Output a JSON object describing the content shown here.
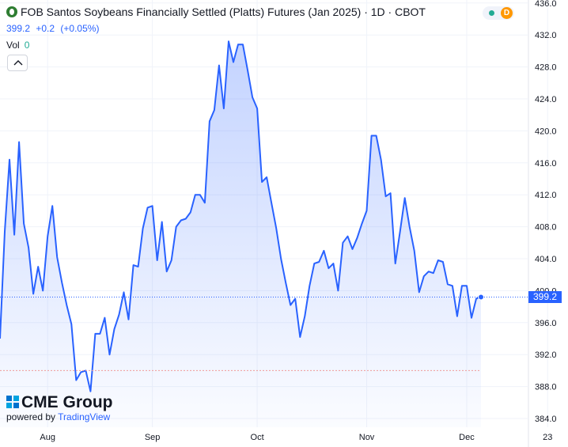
{
  "header": {
    "title": "FOB Santos Soybeans Financially Settled (Platts) Futures (Jan 2025) · 1D · CBOT",
    "last": "399.2",
    "change": "+0.2",
    "change_pct": "(+0.05%)",
    "vol_label": "Vol",
    "vol_value": "0",
    "market_badge": "D"
  },
  "price_label": "399.2",
  "branding": {
    "logo_text": "CME Group",
    "powered_by": "powered by",
    "tradingview": "TradingView"
  },
  "colors": {
    "line": "#2962ff",
    "fill": "#2962ff",
    "grid": "#f0f3fa",
    "reference_line": "#b2b5be"
  },
  "chart_data": {
    "type": "area",
    "title": "FOB Santos Soybeans Financially Settled (Platts) Futures (Jan 2025)",
    "xlabel": "",
    "ylabel": "",
    "ylim": [
      384,
      436
    ],
    "y_ticks": [
      "384.0",
      "388.0",
      "392.0",
      "396.0",
      "400.0",
      "404.0",
      "408.0",
      "412.0",
      "416.0",
      "420.0",
      "424.0",
      "428.0",
      "432.0",
      "436.0"
    ],
    "x_ticks": [
      "Aug",
      "Sep",
      "Oct",
      "Nov",
      "Dec",
      "23"
    ],
    "x_tick_index": [
      10,
      32,
      54,
      77,
      98,
      115
    ],
    "last_price": 399.2,
    "reference_price": 390.0,
    "grid": true,
    "values": [
      394.0,
      407.4,
      416.4,
      407.0,
      418.6,
      408.4,
      405.4,
      399.6,
      403.0,
      400.0,
      406.8,
      410.6,
      404.2,
      401.0,
      398.2,
      395.8,
      388.8,
      389.8,
      390.0,
      387.4,
      394.6,
      394.6,
      396.6,
      392.0,
      395.2,
      397.0,
      399.8,
      396.4,
      403.2,
      403.0,
      407.8,
      410.4,
      410.6,
      403.8,
      408.6,
      402.4,
      403.8,
      408.0,
      408.8,
      409.0,
      409.8,
      412.0,
      412.0,
      411.0,
      421.2,
      422.6,
      428.2,
      422.8,
      431.2,
      428.6,
      430.8,
      430.8,
      427.6,
      424.2,
      422.8,
      413.6,
      414.2,
      411.0,
      407.8,
      404.0,
      401.0,
      398.2,
      399.0,
      394.2,
      396.8,
      400.6,
      403.4,
      403.6,
      405.0,
      402.8,
      403.4,
      400.0,
      406.0,
      406.8,
      405.2,
      406.6,
      408.4,
      410.0,
      419.4,
      419.4,
      416.4,
      411.8,
      412.2,
      403.4,
      407.4,
      411.6,
      408.0,
      405.0,
      399.8,
      401.8,
      402.4,
      402.2,
      403.8,
      403.6,
      400.8,
      400.6,
      396.8,
      400.6,
      400.6,
      396.6,
      399.0,
      399.2
    ]
  }
}
